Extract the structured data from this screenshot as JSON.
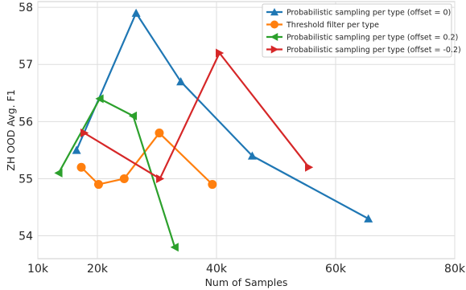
{
  "chart_data": {
    "type": "line",
    "title": "",
    "xlabel": "Num of Samples",
    "ylabel": "ZH OOD Avg. F1",
    "xlim": [
      10000,
      80000
    ],
    "ylim": [
      53.6,
      58.1
    ],
    "xticks": [
      10000,
      20000,
      40000,
      60000,
      80000
    ],
    "xtick_labels": [
      "10k",
      "20k",
      "40k",
      "60k",
      "80k"
    ],
    "yticks": [
      54,
      55,
      56,
      57,
      58
    ],
    "ytick_labels": [
      "54",
      "55",
      "56",
      "57",
      "58"
    ],
    "grid": true,
    "legend_position": "top-right",
    "series": [
      {
        "name": "Probabilistic sampling per type (offset = 0)",
        "color": "#1f77b4",
        "marker": "triangle-up",
        "x": [
          16500,
          26500,
          34000,
          46000,
          65500
        ],
        "y": [
          55.5,
          57.9,
          56.7,
          55.4,
          54.3
        ]
      },
      {
        "name": "Threshold filter per type",
        "color": "#ff7f0e",
        "marker": "circle",
        "x": [
          17300,
          20200,
          24500,
          30400,
          39300
        ],
        "y": [
          55.2,
          54.9,
          55.0,
          55.8,
          54.9
        ]
      },
      {
        "name": "Probabilistic sampling per type (offset = 0.2)",
        "color": "#2ca02c",
        "marker": "triangle-left",
        "x": [
          13500,
          20400,
          26000,
          33000
        ],
        "y": [
          55.1,
          56.4,
          56.1,
          53.8
        ]
      },
      {
        "name": "Probabilistic sampling per type (offset = -0.2)",
        "color": "#d62728",
        "marker": "triangle-right",
        "x": [
          17800,
          30500,
          40500,
          55500
        ],
        "y": [
          55.8,
          55.0,
          57.2,
          55.2
        ]
      }
    ]
  }
}
